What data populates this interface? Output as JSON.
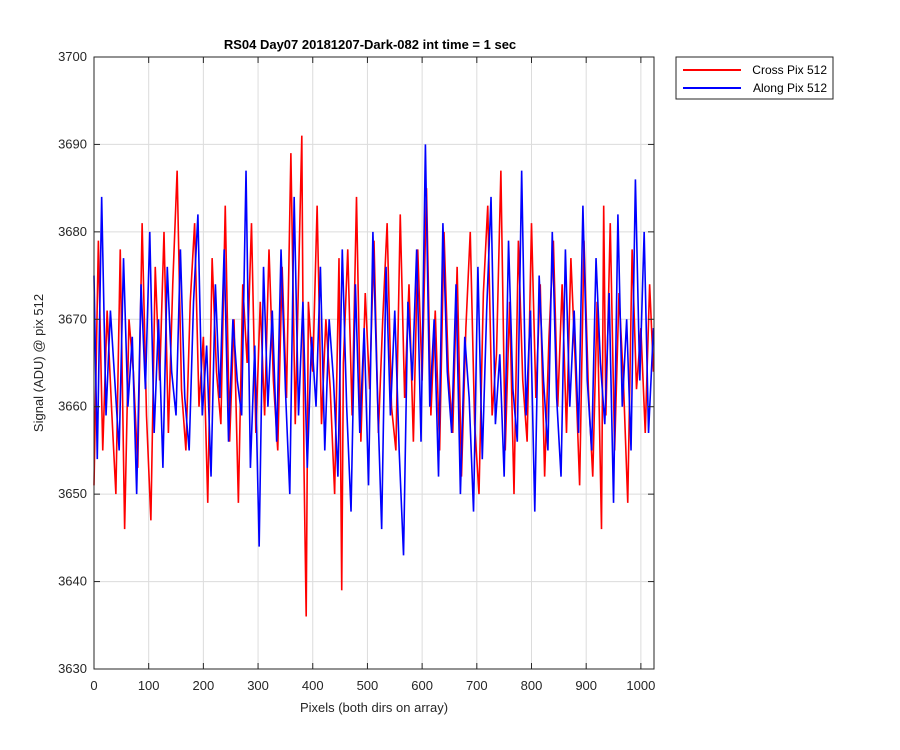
{
  "chart_data": {
    "type": "line",
    "title": "RS04 Day07 20181207-Dark-082 int time = 1 sec",
    "xlabel": "Pixels (both dirs on array)",
    "ylabel": "Signal (ADU) @ pix 512",
    "xlim": [
      0,
      1024
    ],
    "ylim": [
      3630,
      3700
    ],
    "xticks": [
      0,
      100,
      200,
      300,
      400,
      500,
      600,
      700,
      800,
      900,
      1000
    ],
    "yticks": [
      3630,
      3640,
      3650,
      3660,
      3670,
      3680,
      3690,
      3700
    ],
    "grid": true,
    "legend_position": "outside-top-right",
    "series": [
      {
        "name": "Cross Pix 512",
        "color": "#ff0000",
        "x": [
          0,
          8,
          16,
          24,
          32,
          40,
          48,
          56,
          64,
          72,
          80,
          88,
          96,
          104,
          112,
          120,
          128,
          136,
          144,
          152,
          160,
          168,
          176,
          184,
          192,
          200,
          208,
          216,
          224,
          232,
          240,
          248,
          256,
          264,
          272,
          280,
          288,
          296,
          304,
          312,
          320,
          328,
          336,
          344,
          352,
          360,
          368,
          376,
          380,
          384,
          388,
          392,
          400,
          408,
          416,
          424,
          432,
          440,
          448,
          453,
          456,
          464,
          472,
          480,
          488,
          496,
          504,
          512,
          520,
          528,
          536,
          544,
          552,
          560,
          568,
          576,
          584,
          592,
          600,
          608,
          616,
          624,
          632,
          640,
          648,
          656,
          664,
          672,
          680,
          688,
          696,
          704,
          712,
          720,
          728,
          736,
          744,
          752,
          760,
          768,
          776,
          784,
          792,
          800,
          808,
          816,
          824,
          832,
          840,
          848,
          856,
          864,
          872,
          880,
          888,
          896,
          904,
          912,
          920,
          928,
          932,
          936,
          944,
          952,
          960,
          968,
          976,
          984,
          992,
          1000,
          1008,
          1016,
          1023
        ],
        "values": [
          3651,
          3679,
          3655,
          3671,
          3660,
          3650,
          3678,
          3646,
          3670,
          3664,
          3653,
          3681,
          3659,
          3647,
          3676,
          3663,
          3680,
          3657,
          3674,
          3687,
          3662,
          3655,
          3672,
          3681,
          3660,
          3668,
          3649,
          3677,
          3664,
          3658,
          3683,
          3656,
          3670,
          3649,
          3674,
          3665,
          3681,
          3657,
          3672,
          3659,
          3678,
          3663,
          3655,
          3676,
          3661,
          3689,
          3658,
          3680,
          3691,
          3653,
          3636,
          3672,
          3664,
          3683,
          3658,
          3670,
          3662,
          3650,
          3677,
          3639,
          3665,
          3678,
          3659,
          3684,
          3656,
          3673,
          3662,
          3679,
          3657,
          3670,
          3681,
          3660,
          3655,
          3682,
          3661,
          3674,
          3656,
          3678,
          3663,
          3685,
          3659,
          3671,
          3655,
          3680,
          3664,
          3657,
          3676,
          3652,
          3669,
          3680,
          3658,
          3650,
          3673,
          3683,
          3659,
          3666,
          3687,
          3655,
          3672,
          3650,
          3679,
          3663,
          3656,
          3681,
          3661,
          3674,
          3652,
          3668,
          3679,
          3660,
          3674,
          3657,
          3677,
          3665,
          3651,
          3679,
          3662,
          3652,
          3672,
          3646,
          3683,
          3659,
          3681,
          3655,
          3673,
          3663,
          3649,
          3678,
          3662,
          3669,
          3657,
          3674,
          3664
        ],
        "approximate": true
      },
      {
        "name": "Along Pix 512",
        "color": "#0000ff",
        "x": [
          0,
          6,
          14,
          22,
          30,
          38,
          46,
          54,
          62,
          70,
          78,
          86,
          94,
          102,
          110,
          118,
          126,
          134,
          142,
          150,
          158,
          166,
          174,
          182,
          190,
          198,
          206,
          214,
          222,
          230,
          238,
          246,
          254,
          262,
          270,
          278,
          286,
          294,
          302,
          310,
          318,
          326,
          334,
          342,
          350,
          358,
          366,
          374,
          382,
          390,
          398,
          406,
          414,
          422,
          430,
          438,
          446,
          454,
          462,
          470,
          478,
          486,
          494,
          502,
          510,
          518,
          526,
          534,
          542,
          550,
          558,
          566,
          574,
          582,
          590,
          598,
          606,
          614,
          622,
          630,
          638,
          646,
          654,
          662,
          670,
          678,
          686,
          694,
          702,
          710,
          718,
          726,
          734,
          742,
          750,
          758,
          766,
          774,
          782,
          790,
          798,
          806,
          814,
          822,
          830,
          838,
          846,
          854,
          862,
          870,
          878,
          886,
          894,
          902,
          910,
          918,
          926,
          934,
          942,
          950,
          958,
          966,
          974,
          982,
          990,
          998,
          1006,
          1014,
          1023
        ],
        "values": [
          3675,
          3654,
          3684,
          3659,
          3671,
          3663,
          3655,
          3677,
          3660,
          3668,
          3650,
          3674,
          3662,
          3680,
          3657,
          3670,
          3653,
          3676,
          3664,
          3659,
          3678,
          3661,
          3655,
          3672,
          3682,
          3659,
          3667,
          3652,
          3674,
          3661,
          3678,
          3656,
          3670,
          3663,
          3659,
          3687,
          3653,
          3667,
          3644,
          3676,
          3660,
          3671,
          3656,
          3678,
          3662,
          3650,
          3684,
          3659,
          3672,
          3653,
          3668,
          3660,
          3676,
          3655,
          3670,
          3663,
          3652,
          3678,
          3660,
          3648,
          3674,
          3657,
          3669,
          3651,
          3680,
          3662,
          3646,
          3676,
          3659,
          3671,
          3655,
          3643,
          3672,
          3663,
          3678,
          3656,
          3690,
          3660,
          3670,
          3652,
          3681,
          3664,
          3657,
          3674,
          3650,
          3668,
          3661,
          3648,
          3676,
          3654,
          3671,
          3684,
          3658,
          3666,
          3652,
          3679,
          3662,
          3656,
          3687,
          3659,
          3671,
          3648,
          3675,
          3663,
          3655,
          3680,
          3661,
          3652,
          3678,
          3660,
          3671,
          3657,
          3683,
          3663,
          3655,
          3677,
          3665,
          3658,
          3673,
          3649,
          3682,
          3660,
          3670,
          3655,
          3686,
          3663,
          3680,
          3657,
          3669
        ],
        "approximate": true
      }
    ]
  }
}
